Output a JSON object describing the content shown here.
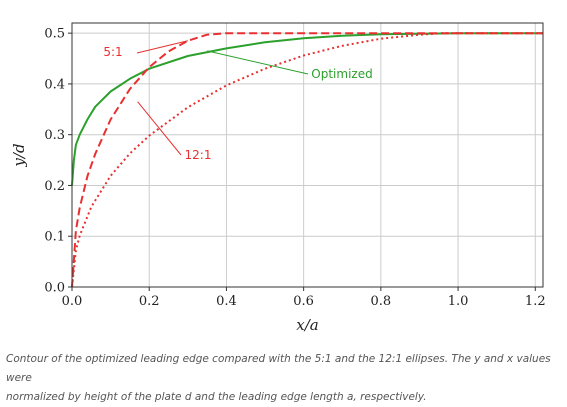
{
  "chart_data": {
    "type": "line",
    "xlabel": "x/a",
    "ylabel": "y/d",
    "xlim": [
      0,
      1.22
    ],
    "ylim": [
      0,
      0.52
    ],
    "grid": true,
    "x_ticks": [
      "0.0",
      "0.2",
      "0.4",
      "0.6",
      "0.8",
      "1.0",
      "1.2"
    ],
    "y_ticks": [
      "0.0",
      "0.1",
      "0.2",
      "0.3",
      "0.4",
      "0.5"
    ],
    "series": [
      {
        "name": "Optimized",
        "color": "#2ca02c",
        "style": "solid",
        "x": [
          0,
          0.005,
          0.01,
          0.02,
          0.04,
          0.06,
          0.1,
          0.15,
          0.2,
          0.3,
          0.4,
          0.5,
          0.6,
          0.7,
          0.8,
          0.9,
          1.0,
          1.1,
          1.22
        ],
        "y": [
          0.2,
          0.25,
          0.28,
          0.3,
          0.33,
          0.355,
          0.385,
          0.41,
          0.43,
          0.455,
          0.47,
          0.482,
          0.49,
          0.495,
          0.498,
          0.499,
          0.5,
          0.5,
          0.5
        ]
      },
      {
        "name": "5:1",
        "color": "#e83030",
        "style": "dashed",
        "x": [
          0,
          0.01,
          0.02,
          0.04,
          0.06,
          0.1,
          0.15,
          0.2,
          0.25,
          0.3,
          0.35,
          0.4,
          0.5,
          0.6,
          0.8,
          1.0,
          1.22
        ],
        "y": [
          0.0,
          0.111,
          0.156,
          0.218,
          0.262,
          0.33,
          0.39,
          0.433,
          0.464,
          0.485,
          0.497,
          0.5,
          0.5,
          0.5,
          0.5,
          0.5,
          0.5
        ]
      },
      {
        "name": "12:1",
        "color": "#e83030",
        "style": "dotted",
        "x": [
          0,
          0.01,
          0.02,
          0.05,
          0.1,
          0.15,
          0.2,
          0.3,
          0.4,
          0.5,
          0.6,
          0.7,
          0.8,
          0.9,
          0.96,
          1.0,
          1.22
        ],
        "y": [
          0.0,
          0.072,
          0.101,
          0.158,
          0.219,
          0.263,
          0.298,
          0.354,
          0.397,
          0.43,
          0.456,
          0.475,
          0.489,
          0.497,
          0.5,
          0.5,
          0.5
        ]
      }
    ],
    "annotations": [
      {
        "text": "5:1",
        "color": "#e83030",
        "point": [
          0.3,
          0.485
        ]
      },
      {
        "text": "Optimized",
        "color": "#2ca02c",
        "point": [
          0.35,
          0.465
        ]
      },
      {
        "text": "12:1",
        "color": "#e83030",
        "point": [
          0.17,
          0.365
        ]
      }
    ]
  },
  "caption": {
    "line1": "Contour of the optimized leading edge compared with the 5:1 and the 12:1 ellipses. The y and x values were",
    "line2": "normalized by height of the plate d and the leading edge length a, respectively."
  }
}
